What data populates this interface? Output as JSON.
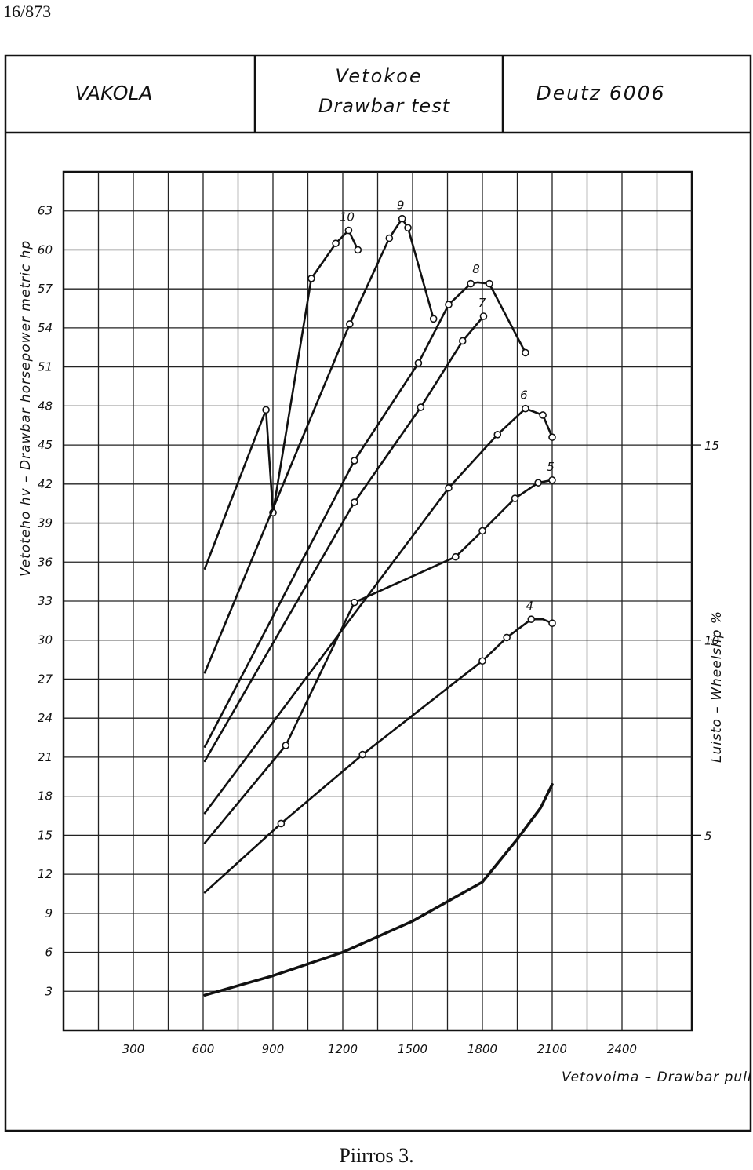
{
  "page_ref": "16/873",
  "header": {
    "left": "VAKOLA",
    "center_line1": "Vetokoe",
    "center_line2": "Drawbar test",
    "right": "Deutz  6006"
  },
  "caption": "Piirros 3.",
  "chart_data": {
    "type": "line",
    "title": "",
    "xlabel": "Vetovoima  –  Drawbar pull kp",
    "ylabel": "Vetoteho hv – Drawbar horsepower metric hp",
    "y2label": "Luisto – Wheelslip %",
    "xlim": [
      0,
      2700
    ],
    "ylim": [
      0,
      66
    ],
    "y2lim": [
      0,
      22
    ],
    "x_ticks": [
      300,
      600,
      900,
      1200,
      1500,
      1800,
      2100,
      2400
    ],
    "y_ticks": [
      3,
      6,
      9,
      12,
      15,
      18,
      21,
      24,
      27,
      30,
      33,
      36,
      39,
      42,
      45,
      48,
      51,
      54,
      57,
      60,
      63
    ],
    "y2_ticks": [
      5,
      10,
      15
    ],
    "grid": true,
    "series": [
      {
        "name": "10",
        "x": [
          607,
          870,
          900,
          1065,
          1170,
          1225,
          1265
        ],
        "y": [
          35.5,
          47.7,
          39.8,
          57.8,
          60.5,
          61.5,
          60.0
        ],
        "marker_x": [
          870,
          900,
          1065,
          1170,
          1225,
          1265
        ],
        "marker_y": [
          47.7,
          39.8,
          57.8,
          60.5,
          61.5,
          60.0
        ]
      },
      {
        "name": "9",
        "x": [
          607,
          1230,
          1400,
          1455,
          1480,
          1590
        ],
        "y": [
          27.5,
          54.3,
          60.9,
          62.4,
          61.7,
          54.7
        ],
        "marker_x": [
          1230,
          1400,
          1455,
          1480,
          1590
        ],
        "marker_y": [
          54.3,
          60.9,
          62.4,
          61.7,
          54.7
        ]
      },
      {
        "name": "8",
        "x": [
          607,
          1250,
          1525,
          1655,
          1750,
          1780,
          1830,
          1985
        ],
        "y": [
          21.8,
          43.8,
          51.3,
          55.8,
          57.4,
          57.5,
          57.4,
          52.1
        ],
        "marker_x": [
          1250,
          1525,
          1655,
          1750,
          1830,
          1985
        ],
        "marker_y": [
          43.8,
          51.3,
          55.8,
          57.4,
          57.4,
          52.1
        ]
      },
      {
        "name": "7",
        "x": [
          607,
          1250,
          1535,
          1715,
          1805
        ],
        "y": [
          20.7,
          40.6,
          47.9,
          53.0,
          54.9
        ],
        "marker_x": [
          1250,
          1535,
          1715,
          1805
        ],
        "marker_y": [
          40.6,
          47.9,
          53.0,
          54.9
        ]
      },
      {
        "name": "6",
        "x": [
          607,
          1655,
          1865,
          1985,
          2060,
          2100
        ],
        "y": [
          16.7,
          41.7,
          45.8,
          47.8,
          47.3,
          45.6
        ],
        "marker_x": [
          1655,
          1865,
          1985,
          2060,
          2100
        ],
        "marker_y": [
          41.7,
          45.8,
          47.8,
          47.3,
          45.6
        ]
      },
      {
        "name": "5",
        "x": [
          607,
          955,
          1250,
          1685,
          1800,
          1940,
          2040,
          2100
        ],
        "y": [
          14.4,
          21.9,
          32.9,
          36.4,
          38.4,
          40.9,
          42.1,
          42.3
        ],
        "marker_x": [
          955,
          1250,
          1685,
          1800,
          1940,
          2040,
          2100
        ],
        "marker_y": [
          21.9,
          32.9,
          36.4,
          38.4,
          40.9,
          42.1,
          42.3
        ]
      },
      {
        "name": "4",
        "x": [
          607,
          935,
          1285,
          1800,
          1905,
          2010,
          2060,
          2100
        ],
        "y": [
          10.6,
          15.9,
          21.2,
          28.4,
          30.2,
          31.6,
          31.6,
          31.3
        ],
        "marker_x": [
          935,
          1285,
          1800,
          1905,
          2010,
          2100
        ],
        "marker_y": [
          15.9,
          21.2,
          28.4,
          30.2,
          31.6,
          31.3
        ]
      },
      {
        "axis": "y2",
        "x": [
          607,
          900,
          1200,
          1500,
          1800,
          1950,
          2050,
          2100
        ],
        "y": [
          0.9,
          1.4,
          2.0,
          2.8,
          3.8,
          4.9,
          5.7,
          6.3
        ]
      }
    ]
  }
}
